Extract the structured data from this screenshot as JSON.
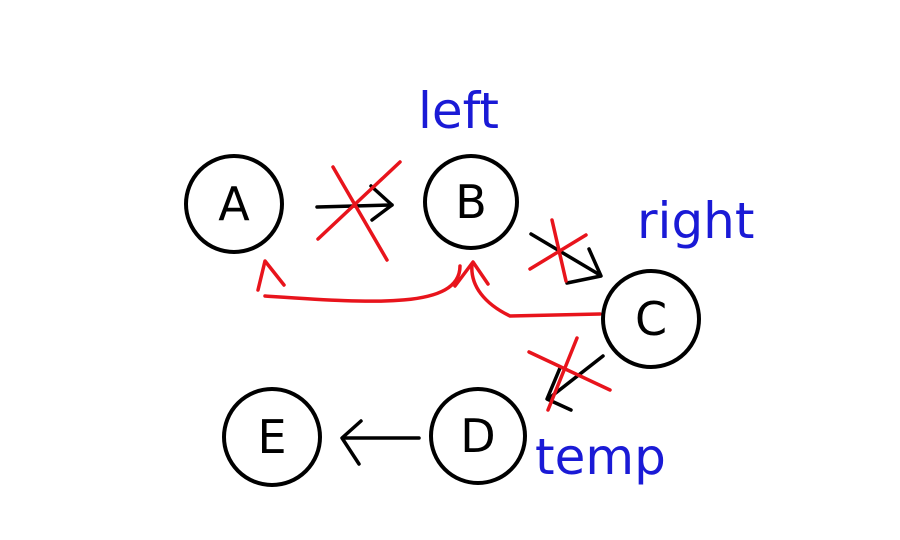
{
  "colors": {
    "node_stroke": "#000000",
    "original_link": "#000000",
    "new_link": "#e8141c",
    "cross_out": "#e8141c",
    "pointer_label": "#1a1ad6"
  },
  "nodes": {
    "a": "A",
    "b": "B",
    "c": "C",
    "d": "D",
    "e": "E"
  },
  "pointers": {
    "left": "left",
    "right": "right",
    "temp": "temp"
  }
}
